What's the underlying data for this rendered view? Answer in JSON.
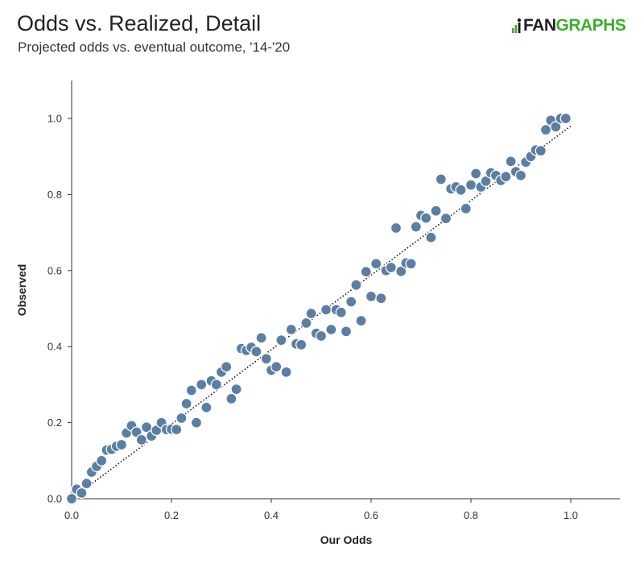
{
  "header": {
    "title": "Odds vs. Realized, Detail",
    "subtitle": "Projected odds vs. eventual outcome, '14-'20",
    "logo_fan": "FAN",
    "logo_graphs": "GRAPHS"
  },
  "chart_data": {
    "type": "scatter",
    "xlabel": "Our Odds",
    "ylabel": "Observed",
    "xlim": [
      0,
      1.0
    ],
    "ylim": [
      0,
      1.0
    ],
    "xticks": [
      "0.0",
      "0.2",
      "0.4",
      "0.6",
      "0.8",
      "1.0"
    ],
    "yticks": [
      "0.0",
      "0.2",
      "0.4",
      "0.6",
      "0.8",
      "1.0"
    ],
    "grid": false,
    "point_color": "#5b7ea3",
    "point_edge": "#ffffff",
    "trend_line": {
      "x": [
        0,
        1.0
      ],
      "y": [
        0,
        0.98
      ],
      "style": "dotted",
      "color": "#111111"
    },
    "points": [
      [
        0.0,
        0.0
      ],
      [
        0.01,
        0.025
      ],
      [
        0.02,
        0.015
      ],
      [
        0.03,
        0.04
      ],
      [
        0.04,
        0.07
      ],
      [
        0.05,
        0.085
      ],
      [
        0.06,
        0.1
      ],
      [
        0.07,
        0.128
      ],
      [
        0.08,
        0.13
      ],
      [
        0.09,
        0.138
      ],
      [
        0.1,
        0.142
      ],
      [
        0.11,
        0.173
      ],
      [
        0.12,
        0.192
      ],
      [
        0.13,
        0.175
      ],
      [
        0.14,
        0.155
      ],
      [
        0.15,
        0.188
      ],
      [
        0.16,
        0.165
      ],
      [
        0.17,
        0.18
      ],
      [
        0.18,
        0.2
      ],
      [
        0.19,
        0.182
      ],
      [
        0.2,
        0.183
      ],
      [
        0.21,
        0.182
      ],
      [
        0.22,
        0.212
      ],
      [
        0.23,
        0.25
      ],
      [
        0.24,
        0.285
      ],
      [
        0.25,
        0.2
      ],
      [
        0.26,
        0.3
      ],
      [
        0.27,
        0.24
      ],
      [
        0.28,
        0.31
      ],
      [
        0.29,
        0.3
      ],
      [
        0.3,
        0.333
      ],
      [
        0.31,
        0.347
      ],
      [
        0.32,
        0.263
      ],
      [
        0.33,
        0.288
      ],
      [
        0.34,
        0.395
      ],
      [
        0.35,
        0.39
      ],
      [
        0.36,
        0.398
      ],
      [
        0.37,
        0.387
      ],
      [
        0.38,
        0.423
      ],
      [
        0.39,
        0.368
      ],
      [
        0.4,
        0.338
      ],
      [
        0.41,
        0.347
      ],
      [
        0.42,
        0.417
      ],
      [
        0.43,
        0.333
      ],
      [
        0.44,
        0.445
      ],
      [
        0.45,
        0.407
      ],
      [
        0.46,
        0.405
      ],
      [
        0.47,
        0.462
      ],
      [
        0.48,
        0.487
      ],
      [
        0.49,
        0.435
      ],
      [
        0.5,
        0.428
      ],
      [
        0.51,
        0.497
      ],
      [
        0.52,
        0.445
      ],
      [
        0.53,
        0.497
      ],
      [
        0.54,
        0.49
      ],
      [
        0.55,
        0.44
      ],
      [
        0.56,
        0.518
      ],
      [
        0.57,
        0.562
      ],
      [
        0.58,
        0.468
      ],
      [
        0.59,
        0.597
      ],
      [
        0.6,
        0.532
      ],
      [
        0.61,
        0.618
      ],
      [
        0.62,
        0.527
      ],
      [
        0.63,
        0.6
      ],
      [
        0.64,
        0.608
      ],
      [
        0.65,
        0.712
      ],
      [
        0.66,
        0.598
      ],
      [
        0.67,
        0.62
      ],
      [
        0.68,
        0.618
      ],
      [
        0.69,
        0.715
      ],
      [
        0.7,
        0.745
      ],
      [
        0.71,
        0.738
      ],
      [
        0.72,
        0.687
      ],
      [
        0.73,
        0.757
      ],
      [
        0.74,
        0.84
      ],
      [
        0.75,
        0.737
      ],
      [
        0.76,
        0.815
      ],
      [
        0.77,
        0.82
      ],
      [
        0.78,
        0.812
      ],
      [
        0.79,
        0.763
      ],
      [
        0.8,
        0.825
      ],
      [
        0.81,
        0.855
      ],
      [
        0.82,
        0.82
      ],
      [
        0.83,
        0.835
      ],
      [
        0.84,
        0.857
      ],
      [
        0.85,
        0.85
      ],
      [
        0.86,
        0.837
      ],
      [
        0.87,
        0.847
      ],
      [
        0.88,
        0.887
      ],
      [
        0.89,
        0.86
      ],
      [
        0.9,
        0.85
      ],
      [
        0.91,
        0.885
      ],
      [
        0.92,
        0.9
      ],
      [
        0.93,
        0.917
      ],
      [
        0.94,
        0.915
      ],
      [
        0.95,
        0.97
      ],
      [
        0.96,
        0.995
      ],
      [
        0.97,
        0.978
      ],
      [
        0.98,
        1.0
      ],
      [
        0.99,
        1.0
      ]
    ]
  }
}
